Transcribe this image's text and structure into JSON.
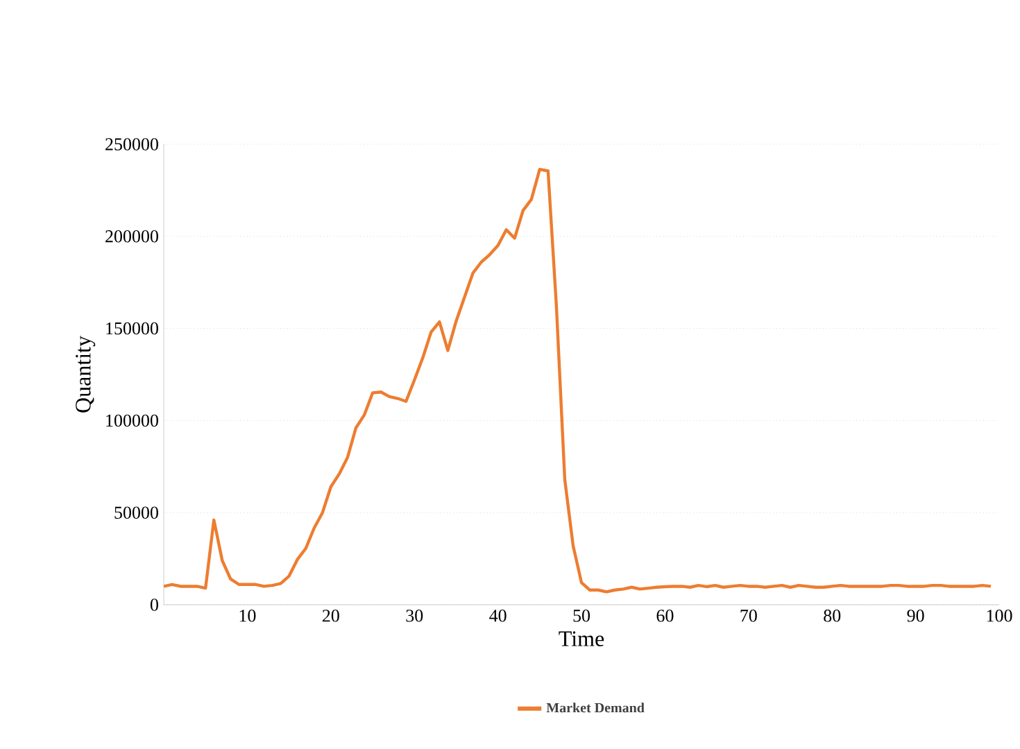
{
  "chart_data": {
    "type": "line",
    "xlabel": "Time",
    "ylabel": "Quantity",
    "x": [
      0,
      1,
      2,
      3,
      4,
      5,
      6,
      7,
      8,
      9,
      10,
      11,
      12,
      13,
      14,
      15,
      16,
      17,
      18,
      19,
      20,
      21,
      22,
      23,
      24,
      25,
      26,
      27,
      28,
      29,
      30,
      31,
      32,
      33,
      34,
      35,
      36,
      37,
      38,
      39,
      40,
      41,
      42,
      43,
      44,
      45,
      46,
      47,
      48,
      49,
      50,
      51,
      52,
      53,
      54,
      55,
      56,
      57,
      58,
      59,
      60,
      61,
      62,
      63,
      64,
      65,
      66,
      67,
      68,
      69,
      70,
      71,
      72,
      73,
      74,
      75,
      76,
      77,
      78,
      79,
      80,
      81,
      82,
      83,
      84,
      85,
      86,
      87,
      88,
      89,
      90,
      91,
      92,
      93,
      94,
      95,
      96,
      97,
      98,
      99
    ],
    "series": [
      {
        "name": "Market Demand",
        "color": "#ed7d31",
        "values": [
          10000,
          11000,
          10000,
          10000,
          10000,
          9000,
          46000,
          24000,
          14000,
          11000,
          11000,
          11000,
          10000,
          10500,
          11500,
          15600,
          24600,
          30600,
          41600,
          50000,
          64000,
          71000,
          80000,
          96000,
          103000,
          115000,
          115500,
          113000,
          112000,
          110400,
          122000,
          134000,
          148000,
          153600,
          138000,
          154000,
          167000,
          180000,
          186000,
          190000,
          195000,
          203600,
          199000,
          214000,
          220000,
          236400,
          235500,
          162000,
          68000,
          32000,
          12000,
          8000,
          8000,
          7000,
          8000,
          8500,
          9500,
          8500,
          9000,
          9500,
          9800,
          10000,
          10000,
          9500,
          10500,
          9800,
          10500,
          9500,
          10000,
          10500,
          10000,
          10000,
          9500,
          10000,
          10500,
          9500,
          10500,
          10000,
          9500,
          9500,
          10000,
          10500,
          10000,
          10000,
          10000,
          10000,
          10000,
          10500,
          10500,
          10000,
          10000,
          10000,
          10500,
          10500,
          10000,
          10000,
          10000,
          10000,
          10500,
          10000
        ]
      }
    ],
    "xlim": [
      0,
      100
    ],
    "xticks": [
      10,
      20,
      30,
      40,
      50,
      60,
      70,
      80,
      90,
      100
    ],
    "ylim": [
      0,
      250000
    ],
    "yticks": [
      0,
      50000,
      100000,
      150000,
      200000,
      250000
    ],
    "grid": "y",
    "legend": "bottom",
    "marker": "none",
    "line_style": "solid"
  }
}
